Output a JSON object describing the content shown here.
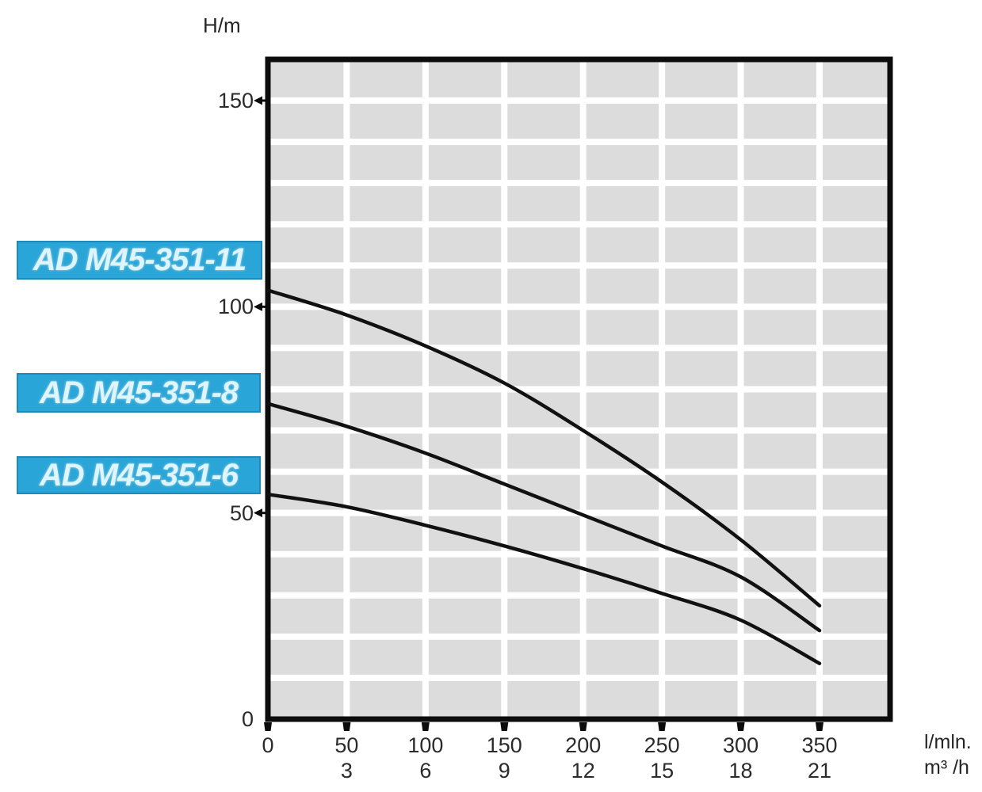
{
  "chart_data": {
    "type": "line",
    "title": "",
    "y_axis_title": "H/m",
    "x_axis_unit_primary": "l/mln.",
    "x_axis_unit_secondary": "m³ /h",
    "x_ticks_l_min": [
      "0",
      "50",
      "100",
      "150",
      "200",
      "250",
      "300",
      "350"
    ],
    "x_ticks_m3_h": [
      "3",
      "6",
      "9",
      "12",
      "15",
      "18",
      "21"
    ],
    "y_ticks": [
      "0",
      "50",
      "100",
      "150"
    ],
    "xlim_l_min": [
      0,
      395
    ],
    "ylim_h_m": [
      0,
      160
    ],
    "grid": {
      "visible": true,
      "x_step_l_min": 50,
      "y_step_h_m": 10
    },
    "legend_position": "left-side-labels",
    "series": [
      {
        "name": "AD M45-351-11",
        "x_l_min": [
          0,
          50,
          100,
          150,
          200,
          250,
          300,
          350
        ],
        "h_m": [
          104,
          98,
          90.5,
          81.5,
          70,
          57.5,
          43.5,
          27.5
        ]
      },
      {
        "name": "AD M45-351-8",
        "x_l_min": [
          0,
          50,
          100,
          150,
          200,
          250,
          300,
          350
        ],
        "h_m": [
          76.5,
          71,
          64.5,
          57,
          49.5,
          42,
          34.5,
          21.5
        ]
      },
      {
        "name": "AD M45-351-6",
        "x_l_min": [
          0,
          50,
          100,
          150,
          200,
          250,
          300,
          350
        ],
        "h_m": [
          54.5,
          51.5,
          47,
          42,
          36.5,
          30.5,
          24,
          13.5
        ]
      }
    ]
  },
  "colors": {
    "plot_background": "#dcdcdc",
    "grid_line": "#ffffff",
    "axis_frame": "#0c0c0c",
    "curve": "#111111",
    "tick_mark": "#0c0c0c",
    "tick_text": "#2b2b2b",
    "label_background": "#2aa5d7",
    "label_border": "#1e8ab9",
    "label_text": "#dff5fd"
  }
}
